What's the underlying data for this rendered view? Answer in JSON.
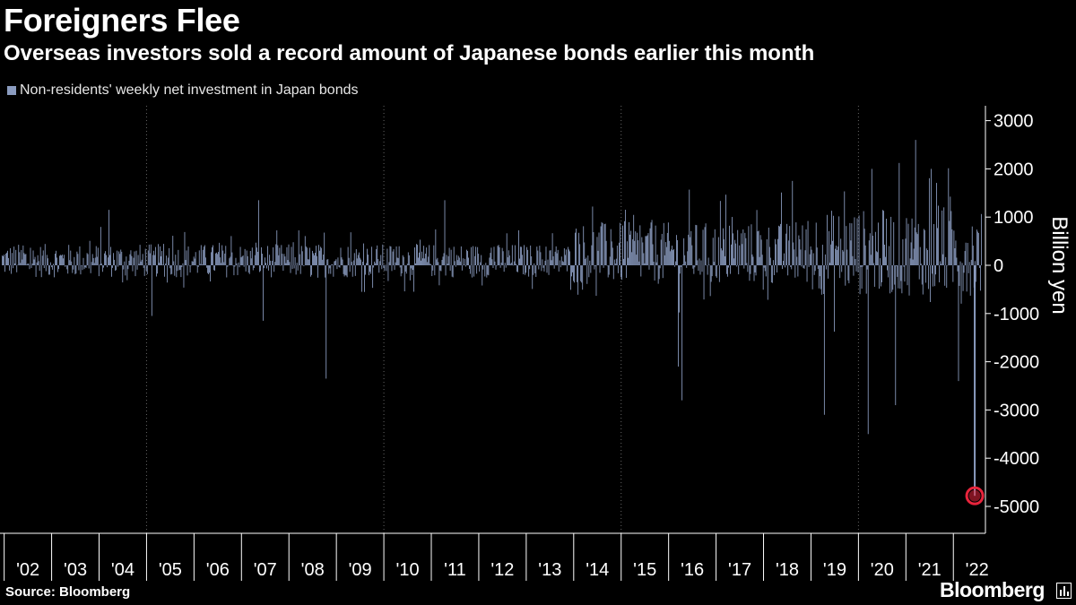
{
  "title": "Foreigners Flee",
  "subtitle": "Overseas investors sold a record amount of Japanese bonds earlier this month",
  "source": "Source: Bloomberg",
  "brand": "Bloomberg",
  "colors": {
    "bar": "#8a9bbf",
    "highlight": "#e8243c",
    "background": "#000000"
  },
  "chart_data": {
    "type": "bar",
    "title": "Foreigners Flee",
    "ylabel": "Billion yen",
    "xlabel": "",
    "ylim": [
      -5500,
      3300
    ],
    "yticks": [
      3000,
      2000,
      1000,
      0,
      -1000,
      -2000,
      -3000,
      -4000,
      -5000
    ],
    "ytick_labels": [
      "3000",
      "2000",
      "1000",
      "0",
      "-1000",
      "-2000",
      "-3000",
      "-4000",
      "-5000"
    ],
    "x_start_year": 2001.95,
    "x_end_year": 2022.6,
    "year_tick_labels": [
      "'02",
      "'03",
      "'04",
      "'05",
      "'06",
      "'07",
      "'08",
      "'09",
      "'10",
      "'11",
      "'12",
      "'13",
      "'14",
      "'15",
      "'16",
      "'17",
      "'18",
      "'19",
      "'20",
      "'21",
      "'22"
    ],
    "series": [
      {
        "name": "Non-residents' weekly net investment in Japan bonds",
        "frequency": "weekly",
        "notable_points": [
          {
            "date": "2004-03",
            "value": 1150
          },
          {
            "date": "2005-02",
            "value": -1050
          },
          {
            "date": "2007-05",
            "value": 1350
          },
          {
            "date": "2007-06",
            "value": -1150
          },
          {
            "date": "2008-10",
            "value": -2350
          },
          {
            "date": "2011-04",
            "value": 1350
          },
          {
            "date": "2016-03",
            "value": -2100
          },
          {
            "date": "2016-04",
            "value": -2800
          },
          {
            "date": "2018-08",
            "value": 1750
          },
          {
            "date": "2019-04",
            "value": -3100
          },
          {
            "date": "2020-03",
            "value": -3500
          },
          {
            "date": "2020-04",
            "value": 2000
          },
          {
            "date": "2020-10",
            "value": -2900
          },
          {
            "date": "2021-03",
            "value": 2600
          },
          {
            "date": "2021-07",
            "value": 2000
          },
          {
            "date": "2022-02",
            "value": -2400
          },
          {
            "date": "2022-06",
            "value": -4780
          }
        ]
      }
    ],
    "highlight": {
      "date": "2022-06",
      "value": -4780
    }
  }
}
